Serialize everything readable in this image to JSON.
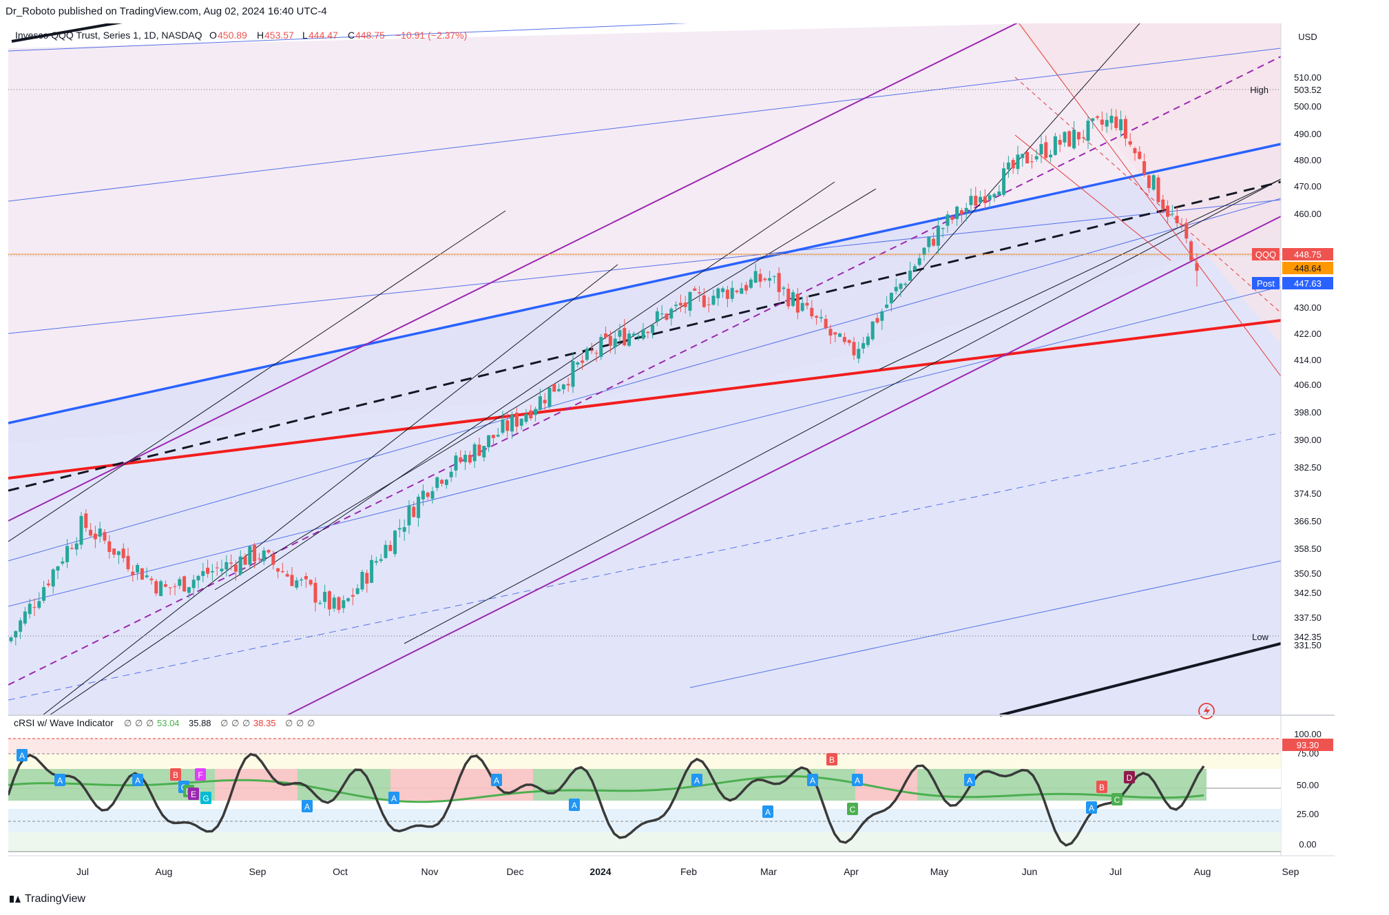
{
  "header": {
    "publisher": "Dr_Roboto published on TradingView.com, Aug 02, 2024 16:40 UTC-4"
  },
  "legend": {
    "title": "Invesco QQQ Trust, Series 1, 1D, NASDAQ",
    "o_label": "O",
    "o_value": "450.89",
    "h_label": "H",
    "h_value": "453.57",
    "l_label": "L",
    "l_value": "444.47",
    "c_label": "C",
    "c_value": "448.75",
    "change": "−10.91 (−2.37%)"
  },
  "currency": "USD",
  "price_axis": [
    "510.00",
    "500.00",
    "490.00",
    "480.00",
    "470.00",
    "460.00",
    "430.00",
    "422.00",
    "414.00",
    "406.00",
    "398.00",
    "390.00",
    "382.50",
    "374.50",
    "366.50",
    "358.50",
    "350.50",
    "342.50",
    "337.50",
    "331.50"
  ],
  "labels": {
    "high_text": "High",
    "high_value": "503.52",
    "low_text": "Low",
    "low_value": "342.35",
    "symbol": "QQQ",
    "last_value": "448.75",
    "bid_value": "448.64",
    "post_text": "Post",
    "post_value": "447.63"
  },
  "indicator": {
    "title": "cRSI w/ Wave Indicator",
    "values": [
      "∅",
      "∅",
      "∅",
      "53.04",
      "35.88",
      "∅",
      "∅",
      "∅",
      "38.35",
      "∅",
      "∅",
      "∅"
    ],
    "axis": [
      "100.00",
      "75.00",
      "50.00",
      "25.00",
      "0.00"
    ],
    "current_value": "93.30",
    "wave_markers": [
      "A",
      "A",
      "A",
      "B",
      "C",
      "D",
      "E",
      "F",
      "G",
      "A",
      "A",
      "A",
      "A",
      "A",
      "A",
      "A",
      "B",
      "A",
      "C",
      "A",
      "A",
      "B",
      "C",
      "D"
    ]
  },
  "time_axis": [
    "Jul",
    "Aug",
    "Sep",
    "Oct",
    "Nov",
    "Dec",
    "2024",
    "Feb",
    "Mar",
    "Apr",
    "May",
    "Jun",
    "Jul",
    "Aug",
    "Sep"
  ],
  "footer": {
    "brand": "TradingView"
  },
  "colors": {
    "up": "#26a69a",
    "down": "#ef5350",
    "blue_line": "#2962ff",
    "red_line": "#f21d1d",
    "purple_line": "#9c27b0"
  },
  "chart_data": {
    "type": "candlestick",
    "title": "Invesco QQQ Trust, Series 1, 1D, NASDAQ",
    "ylim": [
      328,
      516
    ],
    "x": [
      "2023-06",
      "2023-07",
      "2023-08",
      "2023-09",
      "2023-10",
      "2023-11",
      "2023-12",
      "2024-01",
      "2024-02",
      "2024-03",
      "2024-04",
      "2024-05",
      "2024-06",
      "2024-07",
      "2024-08"
    ],
    "close": [
      348,
      380,
      362,
      372,
      356,
      391,
      408,
      428,
      440,
      447,
      426,
      460,
      480,
      490,
      448.75
    ],
    "last_ohlc": {
      "open": 450.89,
      "high": 453.57,
      "low": 444.47,
      "close": 448.75
    },
    "high_marker": 503.52,
    "low_marker": 342.35,
    "post_market": 447.63
  }
}
